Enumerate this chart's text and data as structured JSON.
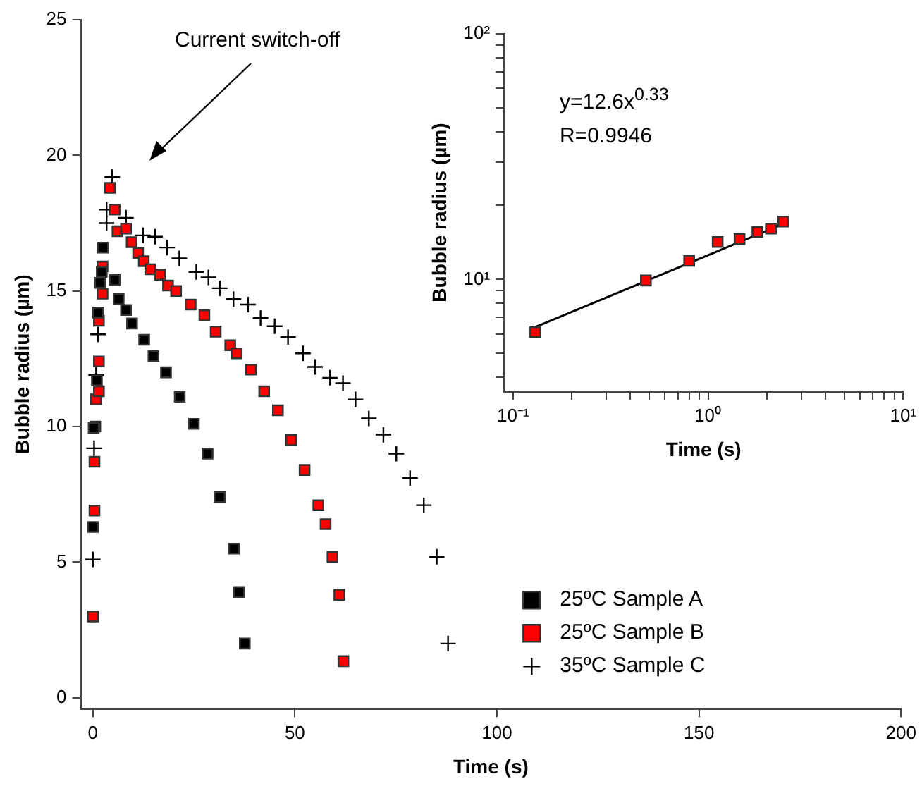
{
  "chart_data": [
    {
      "type": "scatter",
      "xlabel": "Time (s)",
      "ylabel": "Bubble radius (µm)",
      "xlim": [
        -3,
        200
      ],
      "ylim": [
        -0.4,
        25
      ],
      "xticks": [
        0,
        50,
        100,
        150,
        200
      ],
      "yticks": [
        0,
        5,
        10,
        15,
        20,
        25
      ],
      "legend": "bottom right",
      "annotations": [
        "Current switch-off"
      ],
      "series": [
        {
          "name": "25ºC Sample A",
          "color": "#000000",
          "marker": "square",
          "x": [
            0,
            0.2,
            1,
            1.3,
            1.8,
            2.2,
            2.5,
            5.4,
            6.4,
            8.2,
            9.7,
            12.7,
            15,
            18.1,
            21.5,
            25,
            28.4,
            31.4,
            34.9,
            36.2,
            37.6
          ],
          "values": [
            6.3,
            9.95,
            11.7,
            14.2,
            15.3,
            15.7,
            16.6,
            15.4,
            14.7,
            14.3,
            13.8,
            13.2,
            12.6,
            12.0,
            11.1,
            10.1,
            9.0,
            7.4,
            5.5,
            3.9,
            2.0
          ]
        },
        {
          "name": "25ºC Sample B",
          "color": "#ff0000",
          "marker": "square",
          "x": [
            0,
            0.4,
            0.4,
            0.6,
            0.8,
            1.5,
            1.5,
            1.5,
            2.4,
            2.4,
            4.2,
            5.4,
            6.1,
            8.2,
            9.6,
            11.2,
            12.6,
            14.2,
            16.6,
            18.6,
            20.6,
            24.2,
            27.6,
            30.4,
            34.0,
            35.6,
            39.1,
            42.4,
            45.8,
            49.1,
            52.4,
            55.8,
            57.6,
            59.3,
            61.0,
            62.0
          ],
          "values": [
            3.0,
            6.9,
            8.7,
            10.0,
            11.0,
            11.3,
            12.4,
            13.9,
            14.9,
            15.9,
            18.8,
            18.0,
            17.2,
            17.3,
            16.8,
            16.4,
            16.1,
            15.8,
            15.6,
            15.2,
            15.0,
            14.5,
            14.1,
            13.5,
            13.0,
            12.7,
            12.1,
            11.3,
            10.6,
            9.5,
            8.4,
            7.1,
            6.4,
            5.2,
            3.8,
            1.35
          ]
        },
        {
          "name": "35ºC Sample C",
          "color": "#000000",
          "marker": "cross",
          "x": [
            0,
            0.3,
            0.8,
            1.3,
            3.4,
            3.4,
            4.8,
            8.2,
            12.4,
            15.4,
            18.4,
            21.4,
            25.6,
            28.6,
            31.4,
            34.8,
            38.4,
            41.5,
            45,
            48.3,
            52,
            55,
            58.7,
            61.9,
            65,
            68.3,
            71.9,
            75.1,
            78.5,
            81.9,
            85.1,
            87.9
          ],
          "values": [
            5.1,
            9.2,
            11.9,
            13.4,
            17.5,
            18.0,
            19.2,
            17.7,
            17.05,
            17.0,
            16.6,
            16.2,
            15.7,
            15.5,
            15.1,
            14.7,
            14.5,
            14.0,
            13.7,
            13.3,
            12.7,
            12.2,
            11.8,
            11.6,
            11.0,
            10.3,
            9.7,
            9.0,
            8.1,
            7.1,
            5.2,
            2.0
          ]
        }
      ]
    },
    {
      "type": "scatter",
      "xlabel": "Time (s)",
      "ylabel": "Bubble radius (µm)",
      "log": "xy",
      "xlim": [
        0.09,
        10
      ],
      "ylim": [
        3.5,
        100
      ],
      "xticks": [
        {
          "value": 0.1,
          "label": "10⁻¹"
        },
        {
          "value": 0.2,
          "label": null
        },
        {
          "value": 0.3,
          "label": null
        },
        {
          "value": 0.4,
          "label": null
        },
        {
          "value": 0.5,
          "label": null
        },
        {
          "value": 0.6,
          "label": null
        },
        {
          "value": 0.7,
          "label": null
        },
        {
          "value": 0.8,
          "label": null
        },
        {
          "value": 0.9,
          "label": null
        },
        {
          "value": 1,
          "label": "10⁰"
        },
        {
          "value": 2,
          "label": null
        },
        {
          "value": 3,
          "label": null
        },
        {
          "value": 4,
          "label": null
        },
        {
          "value": 5,
          "label": null
        },
        {
          "value": 6,
          "label": null
        },
        {
          "value": 7,
          "label": null
        },
        {
          "value": 8,
          "label": null
        },
        {
          "value": 9,
          "label": null
        },
        {
          "value": 10,
          "label": "10¹"
        }
      ],
      "yticks": [
        {
          "value": 4,
          "label": null
        },
        {
          "value": 5,
          "label": null
        },
        {
          "value": 6,
          "label": null
        },
        {
          "value": 7,
          "label": null
        },
        {
          "value": 8,
          "label": null
        },
        {
          "value": 9,
          "label": null
        },
        {
          "value": 10,
          "label": "10¹"
        },
        {
          "value": 20,
          "label": null
        },
        {
          "value": 30,
          "label": null
        },
        {
          "value": 40,
          "label": null
        },
        {
          "value": 50,
          "label": null
        },
        {
          "value": 60,
          "label": null
        },
        {
          "value": 70,
          "label": null
        },
        {
          "value": 80,
          "label": null
        },
        {
          "value": 90,
          "label": null
        },
        {
          "value": 100,
          "label": "10²"
        }
      ],
      "annotations": [
        "y=12.6x$^{0.33}$",
        "R=0.9946"
      ],
      "series": [
        {
          "type": "scatter",
          "color": "#ff0000",
          "marker": "square",
          "x": [
            0.13,
            0.48,
            0.8,
            1.12,
            1.45,
            1.79,
            2.1,
            2.43
          ],
          "values": [
            6.1,
            9.9,
            11.9,
            14.2,
            14.6,
            15.6,
            16.1,
            17.2
          ]
        },
        {
          "type": "line",
          "color": "#000000",
          "marker": "none",
          "x": [
            0.13,
            2.5
          ],
          "values": [
            6.4,
            17.0
          ]
        }
      ]
    }
  ]
}
